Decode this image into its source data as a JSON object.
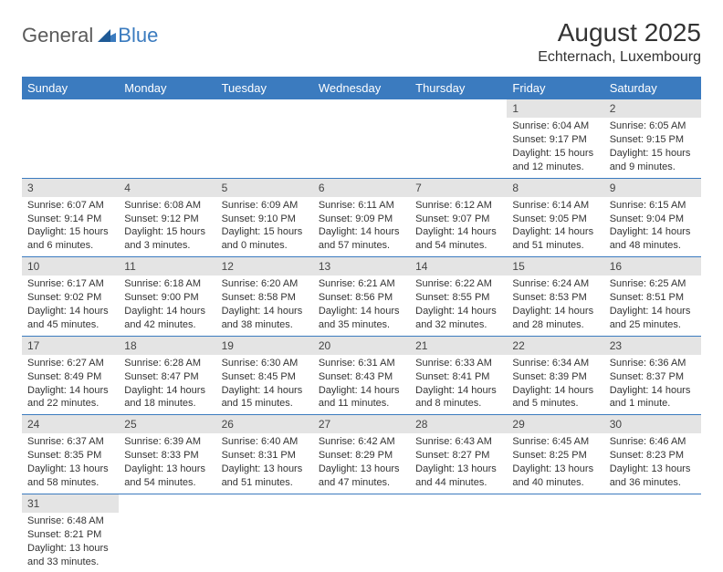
{
  "brand": {
    "part1": "General",
    "part2": "Blue"
  },
  "title": "August 2025",
  "location": "Echternach, Luxembourg",
  "colors": {
    "header_bg": "#3b7bbf",
    "header_text": "#ffffff",
    "daynum_bg": "#e4e4e4",
    "row_divider": "#3b7bbf",
    "text": "#333333",
    "logo_gray": "#5a5a5a",
    "logo_blue": "#3b7bbf"
  },
  "weekdays": [
    "Sunday",
    "Monday",
    "Tuesday",
    "Wednesday",
    "Thursday",
    "Friday",
    "Saturday"
  ],
  "weeks": [
    [
      null,
      null,
      null,
      null,
      null,
      {
        "n": "1",
        "sr": "Sunrise: 6:04 AM",
        "ss": "Sunset: 9:17 PM",
        "dl": "Daylight: 15 hours and 12 minutes."
      },
      {
        "n": "2",
        "sr": "Sunrise: 6:05 AM",
        "ss": "Sunset: 9:15 PM",
        "dl": "Daylight: 15 hours and 9 minutes."
      }
    ],
    [
      {
        "n": "3",
        "sr": "Sunrise: 6:07 AM",
        "ss": "Sunset: 9:14 PM",
        "dl": "Daylight: 15 hours and 6 minutes."
      },
      {
        "n": "4",
        "sr": "Sunrise: 6:08 AM",
        "ss": "Sunset: 9:12 PM",
        "dl": "Daylight: 15 hours and 3 minutes."
      },
      {
        "n": "5",
        "sr": "Sunrise: 6:09 AM",
        "ss": "Sunset: 9:10 PM",
        "dl": "Daylight: 15 hours and 0 minutes."
      },
      {
        "n": "6",
        "sr": "Sunrise: 6:11 AM",
        "ss": "Sunset: 9:09 PM",
        "dl": "Daylight: 14 hours and 57 minutes."
      },
      {
        "n": "7",
        "sr": "Sunrise: 6:12 AM",
        "ss": "Sunset: 9:07 PM",
        "dl": "Daylight: 14 hours and 54 minutes."
      },
      {
        "n": "8",
        "sr": "Sunrise: 6:14 AM",
        "ss": "Sunset: 9:05 PM",
        "dl": "Daylight: 14 hours and 51 minutes."
      },
      {
        "n": "9",
        "sr": "Sunrise: 6:15 AM",
        "ss": "Sunset: 9:04 PM",
        "dl": "Daylight: 14 hours and 48 minutes."
      }
    ],
    [
      {
        "n": "10",
        "sr": "Sunrise: 6:17 AM",
        "ss": "Sunset: 9:02 PM",
        "dl": "Daylight: 14 hours and 45 minutes."
      },
      {
        "n": "11",
        "sr": "Sunrise: 6:18 AM",
        "ss": "Sunset: 9:00 PM",
        "dl": "Daylight: 14 hours and 42 minutes."
      },
      {
        "n": "12",
        "sr": "Sunrise: 6:20 AM",
        "ss": "Sunset: 8:58 PM",
        "dl": "Daylight: 14 hours and 38 minutes."
      },
      {
        "n": "13",
        "sr": "Sunrise: 6:21 AM",
        "ss": "Sunset: 8:56 PM",
        "dl": "Daylight: 14 hours and 35 minutes."
      },
      {
        "n": "14",
        "sr": "Sunrise: 6:22 AM",
        "ss": "Sunset: 8:55 PM",
        "dl": "Daylight: 14 hours and 32 minutes."
      },
      {
        "n": "15",
        "sr": "Sunrise: 6:24 AM",
        "ss": "Sunset: 8:53 PM",
        "dl": "Daylight: 14 hours and 28 minutes."
      },
      {
        "n": "16",
        "sr": "Sunrise: 6:25 AM",
        "ss": "Sunset: 8:51 PM",
        "dl": "Daylight: 14 hours and 25 minutes."
      }
    ],
    [
      {
        "n": "17",
        "sr": "Sunrise: 6:27 AM",
        "ss": "Sunset: 8:49 PM",
        "dl": "Daylight: 14 hours and 22 minutes."
      },
      {
        "n": "18",
        "sr": "Sunrise: 6:28 AM",
        "ss": "Sunset: 8:47 PM",
        "dl": "Daylight: 14 hours and 18 minutes."
      },
      {
        "n": "19",
        "sr": "Sunrise: 6:30 AM",
        "ss": "Sunset: 8:45 PM",
        "dl": "Daylight: 14 hours and 15 minutes."
      },
      {
        "n": "20",
        "sr": "Sunrise: 6:31 AM",
        "ss": "Sunset: 8:43 PM",
        "dl": "Daylight: 14 hours and 11 minutes."
      },
      {
        "n": "21",
        "sr": "Sunrise: 6:33 AM",
        "ss": "Sunset: 8:41 PM",
        "dl": "Daylight: 14 hours and 8 minutes."
      },
      {
        "n": "22",
        "sr": "Sunrise: 6:34 AM",
        "ss": "Sunset: 8:39 PM",
        "dl": "Daylight: 14 hours and 5 minutes."
      },
      {
        "n": "23",
        "sr": "Sunrise: 6:36 AM",
        "ss": "Sunset: 8:37 PM",
        "dl": "Daylight: 14 hours and 1 minute."
      }
    ],
    [
      {
        "n": "24",
        "sr": "Sunrise: 6:37 AM",
        "ss": "Sunset: 8:35 PM",
        "dl": "Daylight: 13 hours and 58 minutes."
      },
      {
        "n": "25",
        "sr": "Sunrise: 6:39 AM",
        "ss": "Sunset: 8:33 PM",
        "dl": "Daylight: 13 hours and 54 minutes."
      },
      {
        "n": "26",
        "sr": "Sunrise: 6:40 AM",
        "ss": "Sunset: 8:31 PM",
        "dl": "Daylight: 13 hours and 51 minutes."
      },
      {
        "n": "27",
        "sr": "Sunrise: 6:42 AM",
        "ss": "Sunset: 8:29 PM",
        "dl": "Daylight: 13 hours and 47 minutes."
      },
      {
        "n": "28",
        "sr": "Sunrise: 6:43 AM",
        "ss": "Sunset: 8:27 PM",
        "dl": "Daylight: 13 hours and 44 minutes."
      },
      {
        "n": "29",
        "sr": "Sunrise: 6:45 AM",
        "ss": "Sunset: 8:25 PM",
        "dl": "Daylight: 13 hours and 40 minutes."
      },
      {
        "n": "30",
        "sr": "Sunrise: 6:46 AM",
        "ss": "Sunset: 8:23 PM",
        "dl": "Daylight: 13 hours and 36 minutes."
      }
    ],
    [
      {
        "n": "31",
        "sr": "Sunrise: 6:48 AM",
        "ss": "Sunset: 8:21 PM",
        "dl": "Daylight: 13 hours and 33 minutes."
      },
      null,
      null,
      null,
      null,
      null,
      null
    ]
  ]
}
